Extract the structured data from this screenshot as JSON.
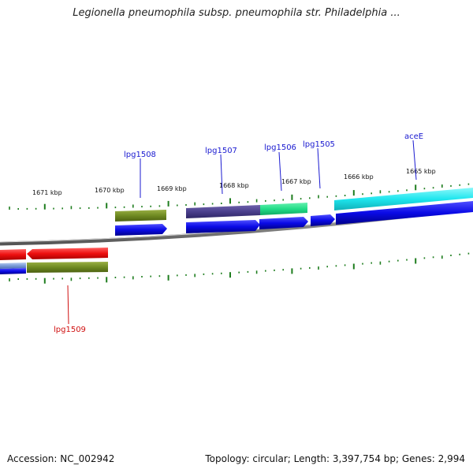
{
  "title": "Legionella pneumophila subsp. pneumophila str. Philadelphia ...",
  "footer": {
    "accession": "Accession: NC_002942",
    "summary": "Topology: circular; Length: 3,397,754 bp; Genes: 2,994"
  },
  "colors": {
    "tick": "#1e7d1e",
    "backbone": "#8a8a8a",
    "label_plus": "#1a1ad0",
    "label_minus": "#d01010",
    "cds": "#0a0ae6",
    "olive": "#6f8a22",
    "slate": "#4a3f8c",
    "seagreen": "#22dd88",
    "cyan": "#1ee6ee",
    "red": "#ee1010",
    "lightblue": "#7a9cd8"
  },
  "kbp_labels": [
    "1671 kbp",
    "1670 kbp",
    "1669 kbp",
    "1668 kbp",
    "1667 kbp",
    "1666 kbp",
    "1665 kbp"
  ],
  "gene_labels": [
    {
      "text": "lpg1508",
      "strand": "plus"
    },
    {
      "text": "lpg1507",
      "strand": "plus"
    },
    {
      "text": "lpg1506",
      "strand": "plus"
    },
    {
      "text": "lpg1505",
      "strand": "plus"
    },
    {
      "text": "aceE",
      "strand": "plus"
    },
    {
      "text": "lpg1509",
      "strand": "minus"
    }
  ]
}
